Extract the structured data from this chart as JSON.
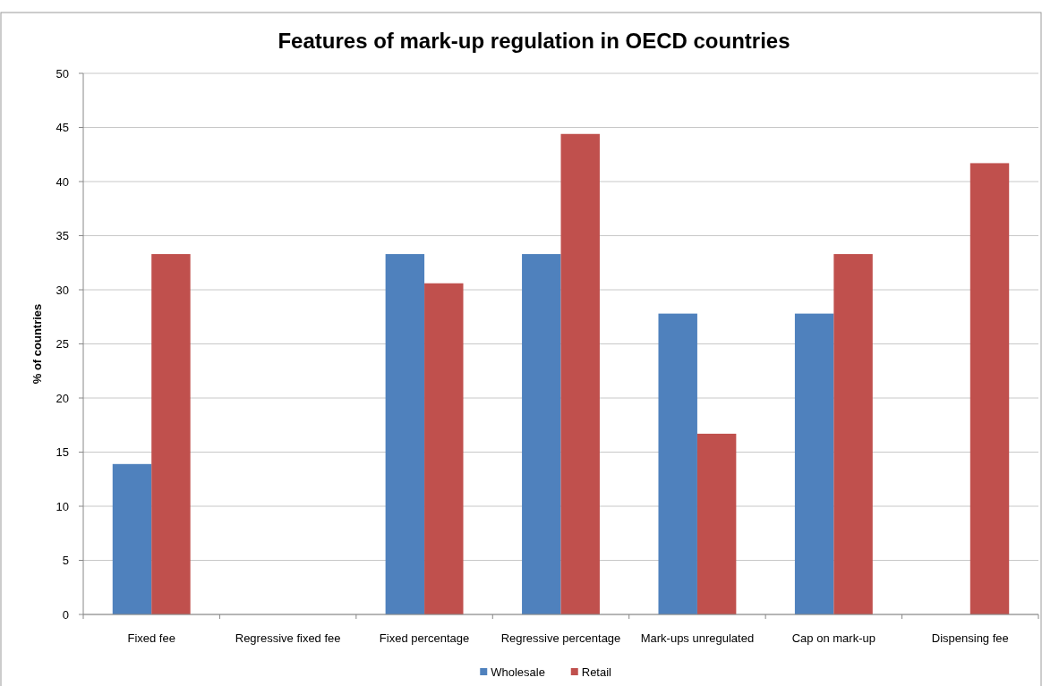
{
  "chart_data": {
    "type": "bar",
    "title": "Features of mark-up regulation in OECD countries",
    "ylabel": "% of countries",
    "categories": [
      "Fixed fee",
      "Regressive fixed fee",
      "Fixed percentage",
      "Regressive percentage",
      "Mark-ups unregulated",
      "Cap on mark-up",
      "Dispensing fee"
    ],
    "series": [
      {
        "name": "Wholesale",
        "color": "#4f81bd",
        "values": [
          13.9,
          0,
          33.3,
          33.3,
          27.8,
          27.8,
          0
        ]
      },
      {
        "name": "Retail",
        "color": "#c0504d",
        "values": [
          33.3,
          0,
          30.6,
          44.4,
          16.7,
          33.3,
          41.7
        ]
      }
    ],
    "ylim": [
      0,
      50
    ],
    "yticks": [
      0,
      5,
      10,
      15,
      20,
      25,
      30,
      35,
      40,
      45,
      50
    ],
    "grid": "y",
    "legend": "bottom"
  }
}
